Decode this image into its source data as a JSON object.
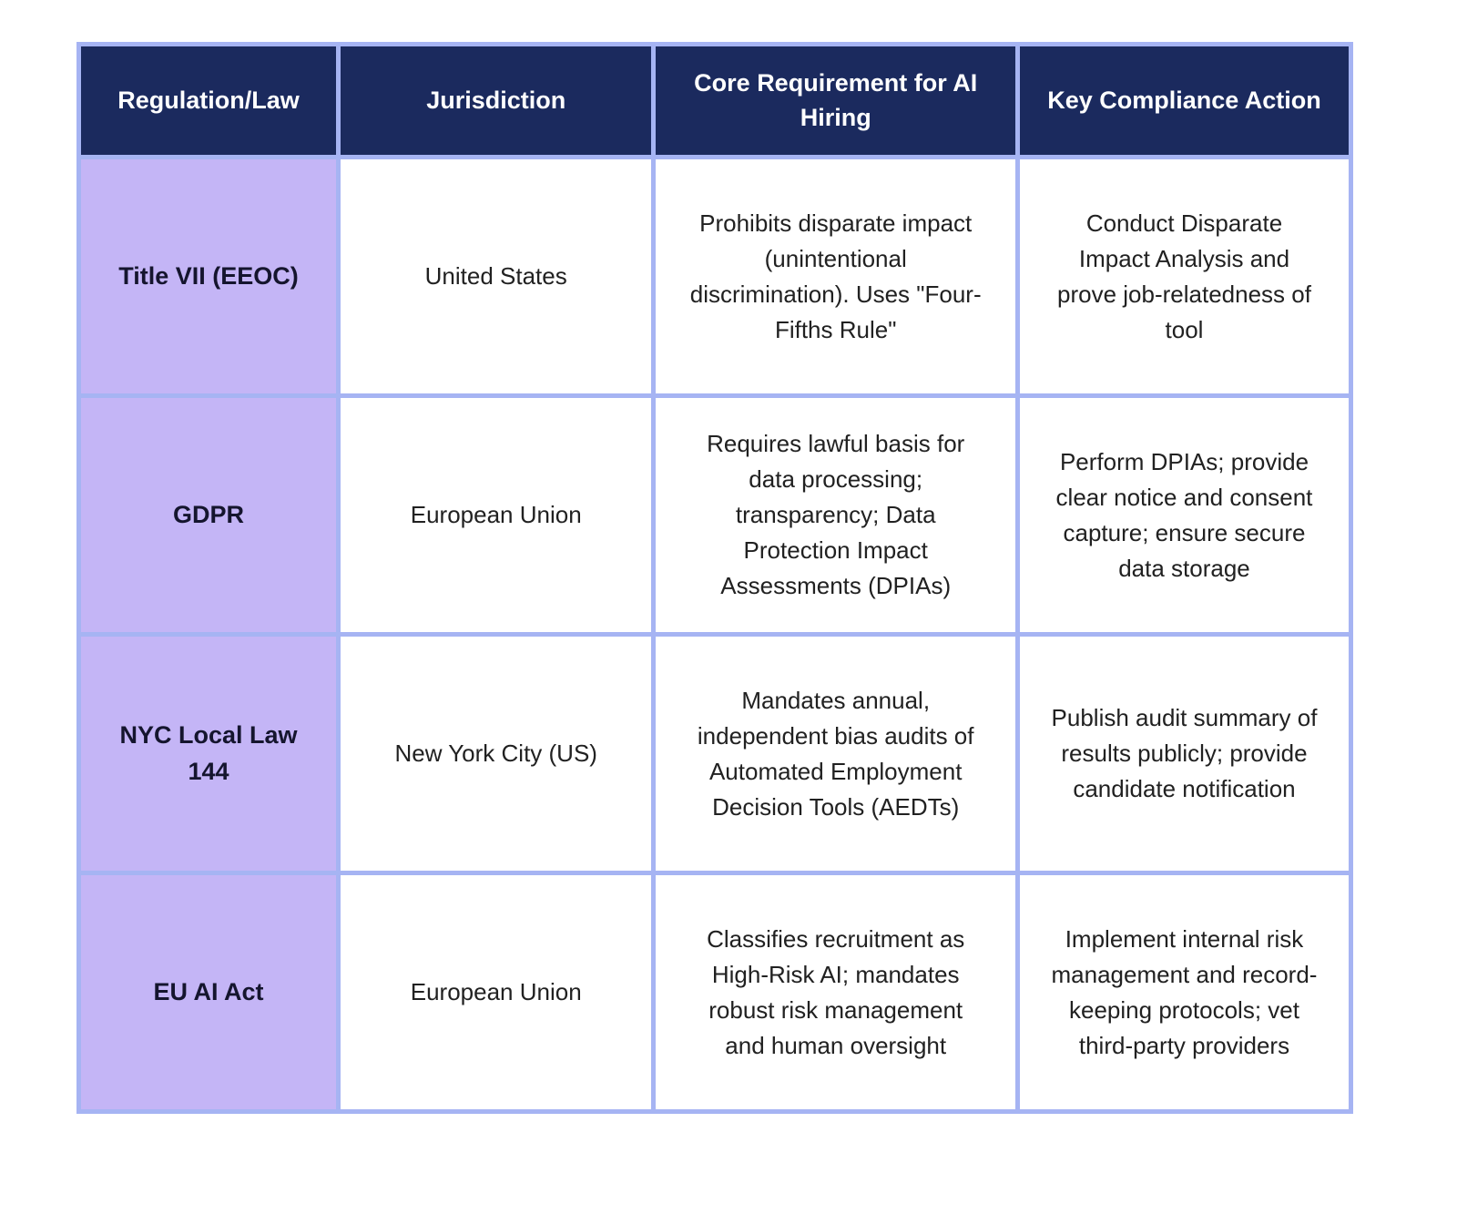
{
  "colors": {
    "header_bg": "#1b2a5e",
    "label_bg": "#c4b5f6",
    "border_color": "#a6b4f3",
    "header_text": "#ffffff",
    "label_text": "#15152e",
    "body_text": "#212121",
    "page_bg": "#ffffff"
  },
  "table": {
    "headers": [
      "Regulation/Law",
      "Jurisdiction",
      "Core Requirement for AI Hiring",
      "Key Compliance Action"
    ],
    "rows": [
      {
        "regulation": "Title VII (EEOC)",
        "jurisdiction": "United States",
        "requirement": "Prohibits disparate impact (unintentional discrimination). Uses \"Four-Fifths Rule\"",
        "action": "Conduct Disparate Impact Analysis and prove job-relatedness of tool"
      },
      {
        "regulation": "GDPR",
        "jurisdiction": "European Union",
        "requirement": "Requires lawful basis for data processing; transparency; Data Protection Impact Assessments (DPIAs)",
        "action": "Perform DPIAs; provide clear notice and consent capture; ensure secure data storage"
      },
      {
        "regulation": "NYC Local Law 144",
        "jurisdiction": "New York City (US)",
        "requirement": "Mandates annual, independent bias audits of Automated Employment Decision Tools (AEDTs)",
        "action": "Publish audit summary of results publicly; provide candidate notification"
      },
      {
        "regulation": "EU AI Act",
        "jurisdiction": "European Union",
        "requirement": "Classifies recruitment as High-Risk AI; mandates robust risk management and human oversight",
        "action": "Implement internal risk management and record-keeping protocols; vet third-party providers"
      }
    ]
  }
}
